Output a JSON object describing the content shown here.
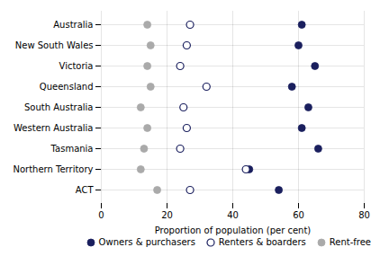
{
  "chart_data": {
    "type": "dot",
    "categories": [
      "Australia",
      "New South Wales",
      "Victoria",
      "Queensland",
      "South Australia",
      "Western Australia",
      "Tasmania",
      "Northern Territory",
      "ACT"
    ],
    "series": [
      {
        "name": "Owners & purchasers",
        "color": "#1a1f5e",
        "marker": "filled_circle",
        "values": [
          61,
          60,
          65,
          58,
          63,
          61,
          66,
          45,
          54
        ]
      },
      {
        "name": "Renters & boarders",
        "color": "#1a1f5e",
        "marker": "open_circle",
        "values": [
          27,
          26,
          24,
          32,
          25,
          26,
          24,
          44,
          27
        ]
      },
      {
        "name": "Rent-free",
        "color": "#aaaaaa",
        "marker": "filled_circle",
        "values": [
          14,
          15,
          14,
          15,
          12,
          14,
          13,
          12,
          17
        ]
      }
    ],
    "xlabel": "Proportion of population (per cent)",
    "xlim": [
      0,
      80
    ],
    "xticks": [
      0,
      20,
      40,
      60,
      80
    ],
    "grid": true,
    "legend": "lower right"
  }
}
